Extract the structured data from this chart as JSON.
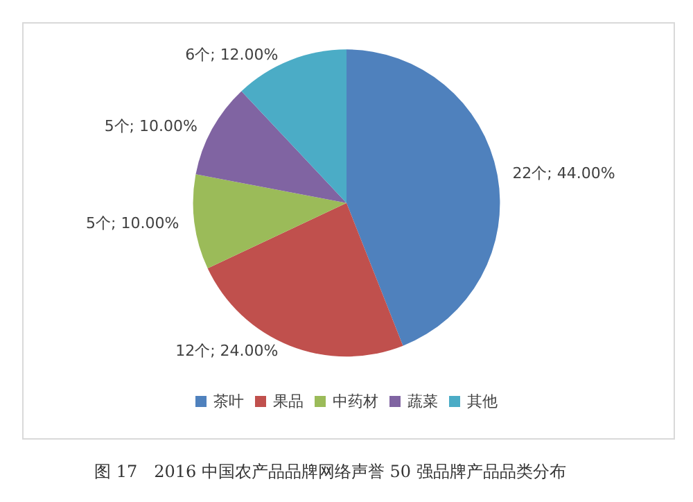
{
  "chart_data": {
    "type": "pie",
    "categories": [
      "茶叶",
      "果品",
      "中药材",
      "蔬菜",
      "其他"
    ],
    "values": [
      22,
      12,
      5,
      5,
      6
    ],
    "value_labels": [
      "22个; 44.00%",
      "12个; 24.00%",
      "5个; 10.00%",
      "5个; 10.00%",
      "6个; 12.00%"
    ],
    "colors": [
      "#4f81bd",
      "#c0504d",
      "#9bbb59",
      "#8064a2",
      "#4bacc6"
    ],
    "legend": "bottom",
    "annotations": [
      "图 17　2016 中国农产品品牌网络声誉 50 强品牌产品品类分布"
    ]
  }
}
